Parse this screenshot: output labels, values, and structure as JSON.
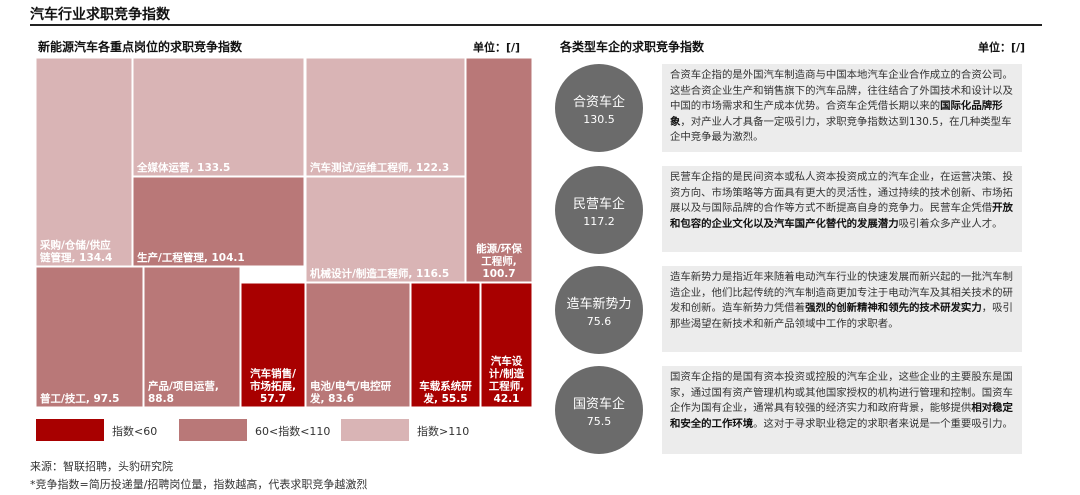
{
  "title": "汽车行业求职竞争指数",
  "left": {
    "title": "新能源汽车各重点岗位的求职竞争指数",
    "unit": "单位：[/]"
  },
  "right": {
    "title": "各类型车企的求职竞争指数",
    "unit": "单位：[/]"
  },
  "chart_data": [
    {
      "type": "treemap",
      "title": "新能源汽车各重点岗位的求职竞争指数",
      "unit": "单位：[/]",
      "items": [
        {
          "label": "采购/仓储/供应链管理",
          "display": "采购/仓储/供应\n链管理, 134.4",
          "value": 134.4,
          "group": "high"
        },
        {
          "label": "全媒体运营",
          "display": "全媒体运营, 133.5",
          "value": 133.5,
          "group": "high"
        },
        {
          "label": "汽车测试/运维工程师",
          "display": "汽车测试/运维工程师, 122.3",
          "value": 122.3,
          "group": "high"
        },
        {
          "label": "生产/工程管理",
          "display": "生产/工程管理, 104.1",
          "value": 104.1,
          "group": "mid"
        },
        {
          "label": "机械设计/制造工程师",
          "display": "机械设计/制造工程师, 116.5",
          "value": 116.5,
          "group": "high"
        },
        {
          "label": "能源/环保工程师",
          "display": "能源/环保\n工程师,\n100.7",
          "value": 100.7,
          "group": "mid"
        },
        {
          "label": "普工/技工",
          "display": "普工/技工, 97.5",
          "value": 97.5,
          "group": "mid"
        },
        {
          "label": "产品/项目运营",
          "display": "产品/项目运营,\n88.8",
          "value": 88.8,
          "group": "mid"
        },
        {
          "label": "汽车销售/市场拓展",
          "display": "汽车销售/\n市场拓展,\n57.7",
          "value": 57.7,
          "group": "low"
        },
        {
          "label": "电池/电气/电控研发",
          "display": "电池/电气/电控研\n发, 83.6",
          "value": 83.6,
          "group": "mid"
        },
        {
          "label": "车载系统研发",
          "display": "车载系统研\n发, 55.5",
          "value": 55.5,
          "group": "low"
        },
        {
          "label": "汽车设计/制造工程师",
          "display": "汽车设\n计/制造\n工程师,\n42.1",
          "value": 42.1,
          "group": "low"
        }
      ],
      "legend": [
        {
          "key": "low",
          "label": "指数<60",
          "color": "#a80000"
        },
        {
          "key": "mid",
          "label": "60<指数<110",
          "color": "#b97878"
        },
        {
          "key": "high",
          "label": "指数>110",
          "color": "#d9b4b5"
        }
      ]
    },
    {
      "type": "bubble",
      "title": "各类型车企的求职竞争指数",
      "unit": "单位：[/]",
      "items": [
        {
          "name": "合资车企",
          "value": 130.5
        },
        {
          "name": "民营车企",
          "value": 117.2
        },
        {
          "name": "造车新势力",
          "value": 75.6
        },
        {
          "name": "国资车企",
          "value": 75.5
        }
      ]
    }
  ],
  "descriptions": [
    {
      "pre": "合资车企指的是外国汽车制造商与中国本地汽车企业合作成立的合资公司。这些合资企业生产和销售旗下的汽车品牌，往往结合了外国技术和设计以及中国的市场需求和生产成本优势。合资车企凭借长期以来的",
      "bold": "国际化品牌形象",
      "post": "，对产业人才具备一定吸引力，求职竞争指数达到130.5，在几种类型车企中竞争最为激烈。"
    },
    {
      "pre": "民营车企指的是民间资本或私人资本投资成立的汽车企业，在运营决策、投资方向、市场策略等方面具有更大的灵活性，通过持续的技术创新、市场拓展以及与国际品牌的合作等方式不断提高自身的竞争力。民营车企凭借",
      "bold": "开放和包容的企业文化以及汽车国产化替代的发展潜力",
      "post": "吸引着众多产业人才。"
    },
    {
      "pre": "造车新势力是指近年来随着电动汽车行业的快速发展而新兴起的一批汽车制造企业，他们比起传统的汽车制造商更加专注于电动汽车及其相关技术的研发和创新。造车新势力凭借着",
      "bold": "强烈的创新精神和领先的技术研发实力",
      "post": "，吸引那些渴望在新技术和新产品领域中工作的求职者。"
    },
    {
      "pre": "国资车企指的是国有资本投资或控股的汽车企业，这些企业的主要股东是国家，通过国有资产管理机构或其他国家授权的机构进行管理和控制。国资车企作为国有企业，通常具有较强的经济实力和政府背景，能够提供",
      "bold": "相对稳定和安全的工作环境",
      "post": "。这对于寻求职业稳定的求职者来说是一个重要吸引力。"
    }
  ],
  "notes": {
    "source": "来源：智联招聘，头豹研究院",
    "footnote": "*竞争指数=简历投递量/招聘岗位量，指数越高，代表求职竞争越激烈"
  }
}
